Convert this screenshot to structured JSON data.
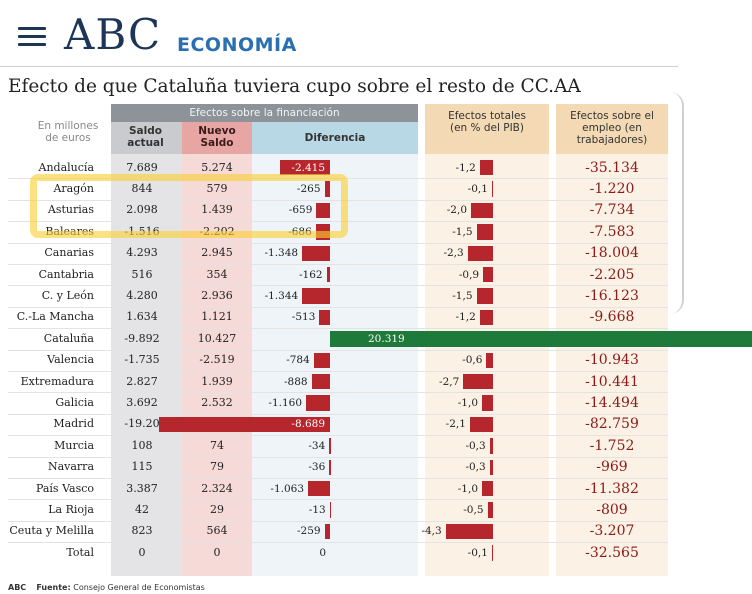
{
  "header": {
    "logo": "ABC",
    "section": "ECONOMÍA"
  },
  "chart_data": {
    "type": "table",
    "title": "Efecto de que Cataluña tuviera cupo sobre el resto de CC.AA",
    "units_label": "En millones de euros",
    "group_header": "Efectos sobre la financiación",
    "columns": {
      "saldo_actual": "Saldo actual",
      "nuevo_saldo": "Nuevo Saldo",
      "diferencia": "Diferencia",
      "efectos_pib": "Efectos totales (en % del PIB)",
      "efectos_empleo": "Efectos sobre el empleo (en trabajadores)"
    },
    "rows": [
      {
        "region": "Andalucía",
        "saldo": "7.689",
        "nuevo": "5.274",
        "dif_label": "-2.415",
        "dif": -2415,
        "pib_label": "-1,2",
        "pib": -1.2,
        "empleo": "-35.134"
      },
      {
        "region": "Aragón",
        "saldo": "844",
        "nuevo": "579",
        "dif_label": "-265",
        "dif": -265,
        "pib_label": "-0,1",
        "pib": -0.1,
        "empleo": "-1.220"
      },
      {
        "region": "Asturias",
        "saldo": "2.098",
        "nuevo": "1.439",
        "dif_label": "-659",
        "dif": -659,
        "pib_label": "-2,0",
        "pib": -2.0,
        "empleo": "-7.734"
      },
      {
        "region": "Baleares",
        "saldo": "-1.516",
        "nuevo": "-2.202",
        "dif_label": "-686",
        "dif": -686,
        "pib_label": "-1,5",
        "pib": -1.5,
        "empleo": "-7.583"
      },
      {
        "region": "Canarias",
        "saldo": "4.293",
        "nuevo": "2.945",
        "dif_label": "-1.348",
        "dif": -1348,
        "pib_label": "-2,3",
        "pib": -2.3,
        "empleo": "-18.004"
      },
      {
        "region": "Cantabria",
        "saldo": "516",
        "nuevo": "354",
        "dif_label": "-162",
        "dif": -162,
        "pib_label": "-0,9",
        "pib": -0.9,
        "empleo": "-2.205"
      },
      {
        "region": "C. y León",
        "saldo": "4.280",
        "nuevo": "2.936",
        "dif_label": "-1.344",
        "dif": -1344,
        "pib_label": "-1,5",
        "pib": -1.5,
        "empleo": "-16.123"
      },
      {
        "region": "C.-La Mancha",
        "saldo": "1.634",
        "nuevo": "1.121",
        "dif_label": "-513",
        "dif": -513,
        "pib_label": "-1,2",
        "pib": -1.2,
        "empleo": "-9.668"
      },
      {
        "region": "Cataluña",
        "saldo": "-9.892",
        "nuevo": "10.427",
        "dif_label": "20.319",
        "dif": 20319,
        "pib_label": "",
        "pib": 0,
        "empleo": ""
      },
      {
        "region": "Valencia",
        "saldo": "-1.735",
        "nuevo": "-2.519",
        "dif_label": "-784",
        "dif": -784,
        "pib_label": "-0,6",
        "pib": -0.6,
        "empleo": "-10.943"
      },
      {
        "region": "Extremadura",
        "saldo": "2.827",
        "nuevo": "1.939",
        "dif_label": "-888",
        "dif": -888,
        "pib_label": "-2,7",
        "pib": -2.7,
        "empleo": "-10.441"
      },
      {
        "region": "Galicia",
        "saldo": "3.692",
        "nuevo": "2.532",
        "dif_label": "-1.160",
        "dif": -1160,
        "pib_label": "-1,0",
        "pib": -1.0,
        "empleo": "-14.494"
      },
      {
        "region": "Madrid",
        "saldo": "-19.20",
        "nuevo": "",
        "dif_label": "-8.689",
        "dif": -8689,
        "pib_label": "-2,1",
        "pib": -2.1,
        "empleo": "-82.759"
      },
      {
        "region": "Murcia",
        "saldo": "108",
        "nuevo": "74",
        "dif_label": "-34",
        "dif": -34,
        "pib_label": "-0,3",
        "pib": -0.3,
        "empleo": "-1.752"
      },
      {
        "region": "Navarra",
        "saldo": "115",
        "nuevo": "79",
        "dif_label": "-36",
        "dif": -36,
        "pib_label": "-0,3",
        "pib": -0.3,
        "empleo": "-969"
      },
      {
        "region": "País Vasco",
        "saldo": "3.387",
        "nuevo": "2.324",
        "dif_label": "-1.063",
        "dif": -1063,
        "pib_label": "-1,0",
        "pib": -1.0,
        "empleo": "-11.382"
      },
      {
        "region": "La Rioja",
        "saldo": "42",
        "nuevo": "29",
        "dif_label": "-13",
        "dif": -13,
        "pib_label": "-0,5",
        "pib": -0.5,
        "empleo": "-809"
      },
      {
        "region": "Ceuta y Melilla",
        "saldo": "823",
        "nuevo": "564",
        "dif_label": "-259",
        "dif": -259,
        "pib_label": "-4,3",
        "pib": -4.3,
        "empleo": "-3.207"
      },
      {
        "region": "Total",
        "saldo": "0",
        "nuevo": "0",
        "dif_label": "0",
        "dif": 0,
        "pib_label": "-0,1",
        "pib": -0.1,
        "empleo": "-32.565"
      }
    ],
    "highlighted_rows": [
      "Aragón",
      "Asturias",
      "Baleares"
    ]
  },
  "footer": {
    "brand": "ABC",
    "source_label": "Fuente:",
    "source": "Consejo General de Economistas"
  },
  "colors": {
    "navy": "#1d3557",
    "section_blue": "#2a6fb0",
    "bar_red": "#b5262d",
    "cataluna_green": "#1e7a3a",
    "highlight_yellow": "#face32"
  }
}
